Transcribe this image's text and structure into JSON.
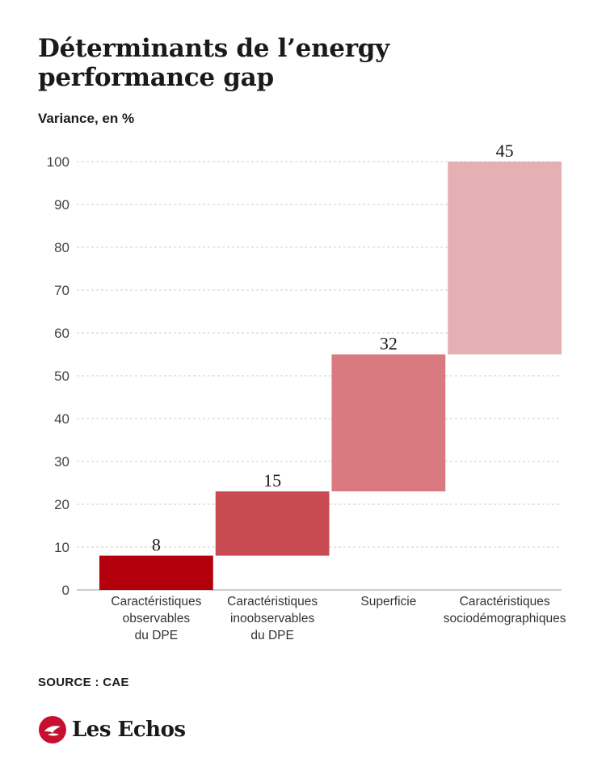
{
  "header": {
    "title": "Déterminants de l’energy performance gap",
    "subtitle": "Variance, en %"
  },
  "chart_data": {
    "type": "bar",
    "subtype": "waterfall",
    "categories": [
      [
        "Caractéristiques",
        "observables",
        "du DPE"
      ],
      [
        "Caractéristiques",
        "inoobservables",
        "du DPE"
      ],
      [
        "Superficie"
      ],
      [
        "Caractéristiques",
        "sociodémographiques"
      ]
    ],
    "values": [
      8,
      15,
      32,
      45
    ],
    "value_labels": [
      "8",
      "15",
      "32",
      "45"
    ],
    "ylim": [
      0,
      100
    ],
    "yticks": [
      0,
      10,
      20,
      30,
      40,
      50,
      60,
      70,
      80,
      90,
      100
    ],
    "grid": true,
    "colors": [
      "#b3000c",
      "#c94b52",
      "#d97a80",
      "#e5b0b3"
    ],
    "grid_color": "#cccccc"
  },
  "footer": {
    "source": "SOURCE : CAE",
    "logo_text": "Les Echos",
    "logo_color": "#c8102e"
  }
}
